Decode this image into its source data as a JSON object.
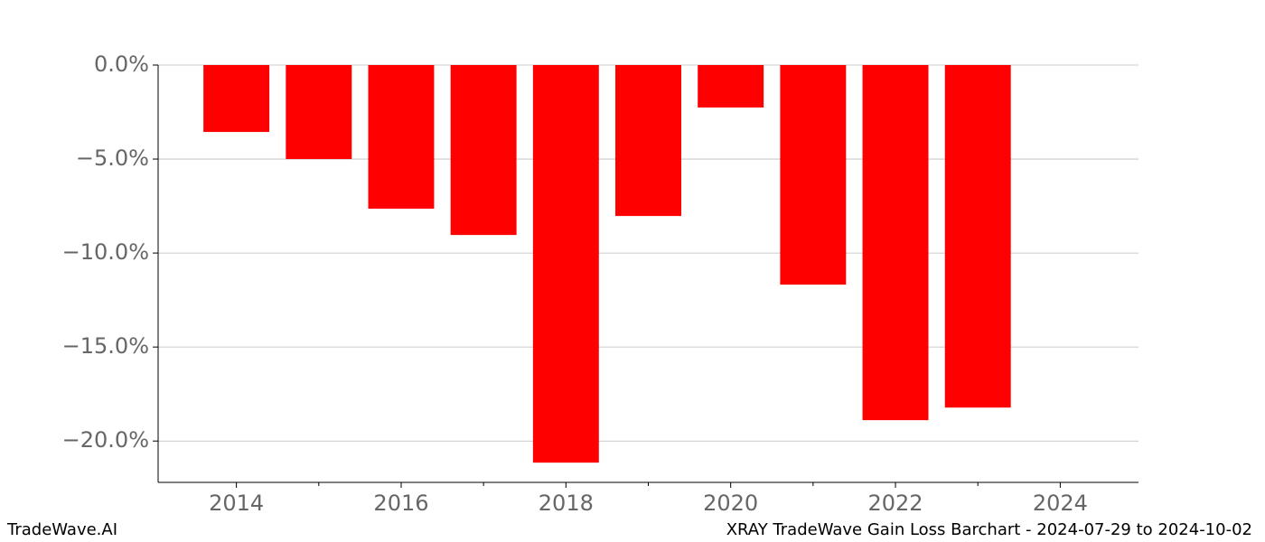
{
  "chart_data": {
    "type": "bar",
    "title": "XRAY TradeWave Gain Loss Barchart - 2024-07-29 to 2024-10-02",
    "watermark": "TradeWave.AI",
    "x": [
      2014,
      2015,
      2016,
      2017,
      2018,
      2019,
      2020,
      2021,
      2022,
      2023
    ],
    "values": [
      -3.56,
      -5.0,
      -7.64,
      -9.04,
      -21.15,
      -8.03,
      -2.26,
      -11.68,
      -18.89,
      -18.22
    ],
    "color": "#ff0000",
    "xlim": [
      2013.05,
      2024.95
    ],
    "xticks": [
      2014,
      2016,
      2018,
      2020,
      2022,
      2024
    ],
    "xminorticks": [
      2015,
      2017,
      2019,
      2021,
      2023
    ],
    "ylim": [
      -22.2,
      0
    ],
    "yticks": [
      {
        "value": 0,
        "label": "0.0%"
      },
      {
        "value": -5,
        "label": "−5.0%"
      },
      {
        "value": -10,
        "label": "−10.0%"
      },
      {
        "value": -15,
        "label": "−15.0%"
      },
      {
        "value": -20,
        "label": "−20.0%"
      }
    ],
    "grid": true
  }
}
